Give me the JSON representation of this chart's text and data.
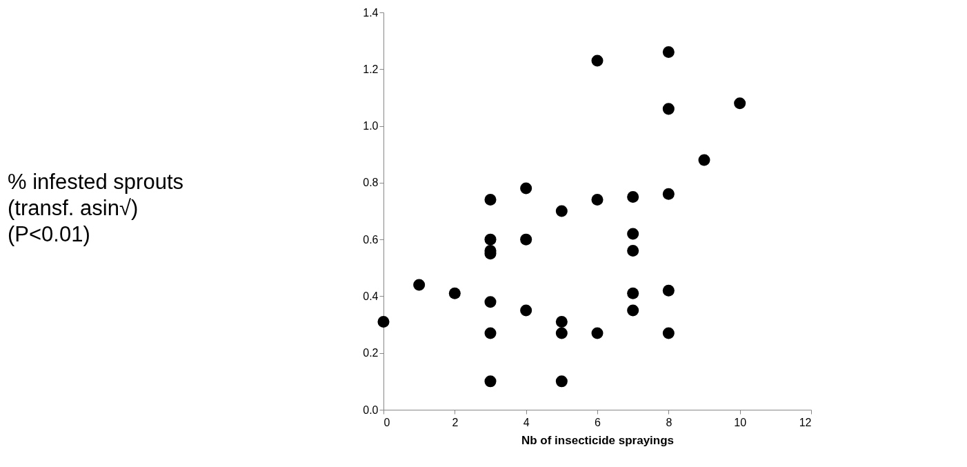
{
  "chart_data": {
    "type": "scatter",
    "xlabel": "Nb of insecticide sprayings",
    "annotations": [
      "% infested sprouts\n(transf. asin√)\n(P<0.01)"
    ],
    "x": [
      0,
      1,
      2,
      3,
      3,
      3,
      3,
      3,
      3,
      3,
      4,
      4,
      4,
      5,
      5,
      5,
      5,
      6,
      6,
      6,
      7,
      7,
      7,
      7,
      7,
      8,
      8,
      8,
      8,
      8,
      9,
      10
    ],
    "series": [
      {
        "color": "#000000",
        "values": [
          0.31,
          0.44,
          0.41,
          0.74,
          0.6,
          0.56,
          0.55,
          0.38,
          0.27,
          0.1,
          0.78,
          0.6,
          0.35,
          0.7,
          0.31,
          0.27,
          0.1,
          1.23,
          0.74,
          0.27,
          0.75,
          0.62,
          0.56,
          0.41,
          0.35,
          1.26,
          1.06,
          0.76,
          0.42,
          0.27,
          0.88,
          1.08
        ]
      }
    ],
    "xlim": [
      0,
      12
    ],
    "xticks": [
      0,
      2,
      4,
      6,
      8,
      10,
      12
    ],
    "ylim": [
      0,
      1.4
    ],
    "yticks": [
      {
        "value": 0,
        "label": "0.0"
      },
      0.2,
      0.4,
      0.6,
      0.8,
      {
        "value": 1,
        "label": "1.0"
      },
      1.2,
      1.4
    ],
    "marker": "circle",
    "grid": false
  }
}
